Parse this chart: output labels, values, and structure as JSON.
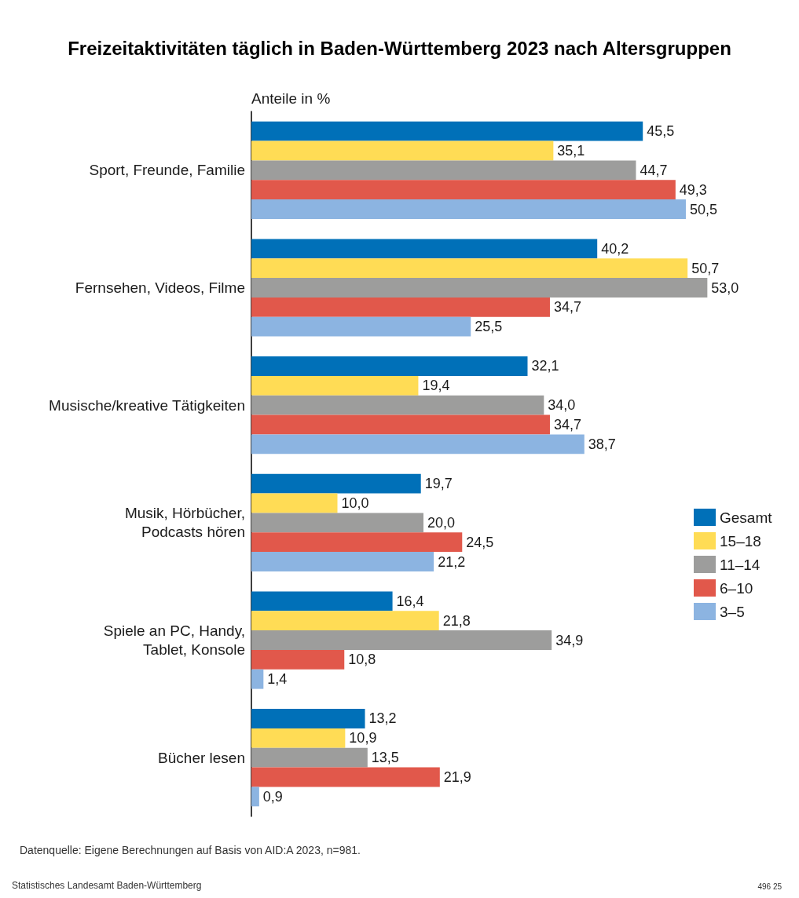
{
  "chart_data": {
    "type": "bar",
    "orientation": "horizontal",
    "title": "Freizeitaktivitäten täglich in Baden-Württemberg 2023 nach Altersgruppen",
    "xlabel": "Anteile in %",
    "categories": [
      "Sport, Freunde, Familie",
      "Fernsehen, Videos, Filme",
      "Musische/kreative Tätigkeiten",
      "Musik, Hörbücher,\nPodcasts hören",
      "Spiele an PC, Handy,\nTablet, Konsole",
      "Bücher lesen"
    ],
    "series": [
      {
        "name": "Gesamt",
        "color": "#0070b8",
        "values": [
          45.5,
          40.2,
          32.1,
          19.7,
          16.4,
          13.2
        ],
        "value_labels": [
          "45,5",
          "40,2",
          "32,1",
          "19,7",
          "16,4",
          "13,2"
        ]
      },
      {
        "name": "15–18",
        "color": "#ffdc55",
        "values": [
          35.1,
          50.7,
          19.4,
          10.0,
          21.8,
          10.9
        ],
        "value_labels": [
          "35,1",
          "50,7",
          "19,4",
          "10,0",
          "21,8",
          "10,9"
        ]
      },
      {
        "name": "11–14",
        "color": "#9d9d9c",
        "values": [
          44.7,
          53.0,
          34.0,
          20.0,
          34.9,
          13.5
        ],
        "value_labels": [
          "44,7",
          "53,0",
          "34,0",
          "20,0",
          "34,9",
          "13,5"
        ]
      },
      {
        "name": "6–10",
        "color": "#e1584b",
        "values": [
          49.3,
          34.7,
          34.7,
          24.5,
          10.8,
          21.9
        ],
        "value_labels": [
          "49,3",
          "34,7",
          "34,7",
          "24,5",
          "10,8",
          "21,9"
        ]
      },
      {
        "name": "3–5",
        "color": "#8cb4e1",
        "values": [
          50.5,
          25.5,
          38.7,
          21.2,
          1.4,
          0.9
        ],
        "value_labels": [
          "50,5",
          "25,5",
          "38,7",
          "21,2",
          "1,4",
          "0,9"
        ]
      }
    ],
    "legend": "right",
    "grid": false,
    "annotations": [
      "Datenquelle: Eigene Berechnungen auf Basis von AID:A 2023, n=981.",
      "Statistisches Landesamt Baden-Württemberg",
      "496 25"
    ]
  }
}
